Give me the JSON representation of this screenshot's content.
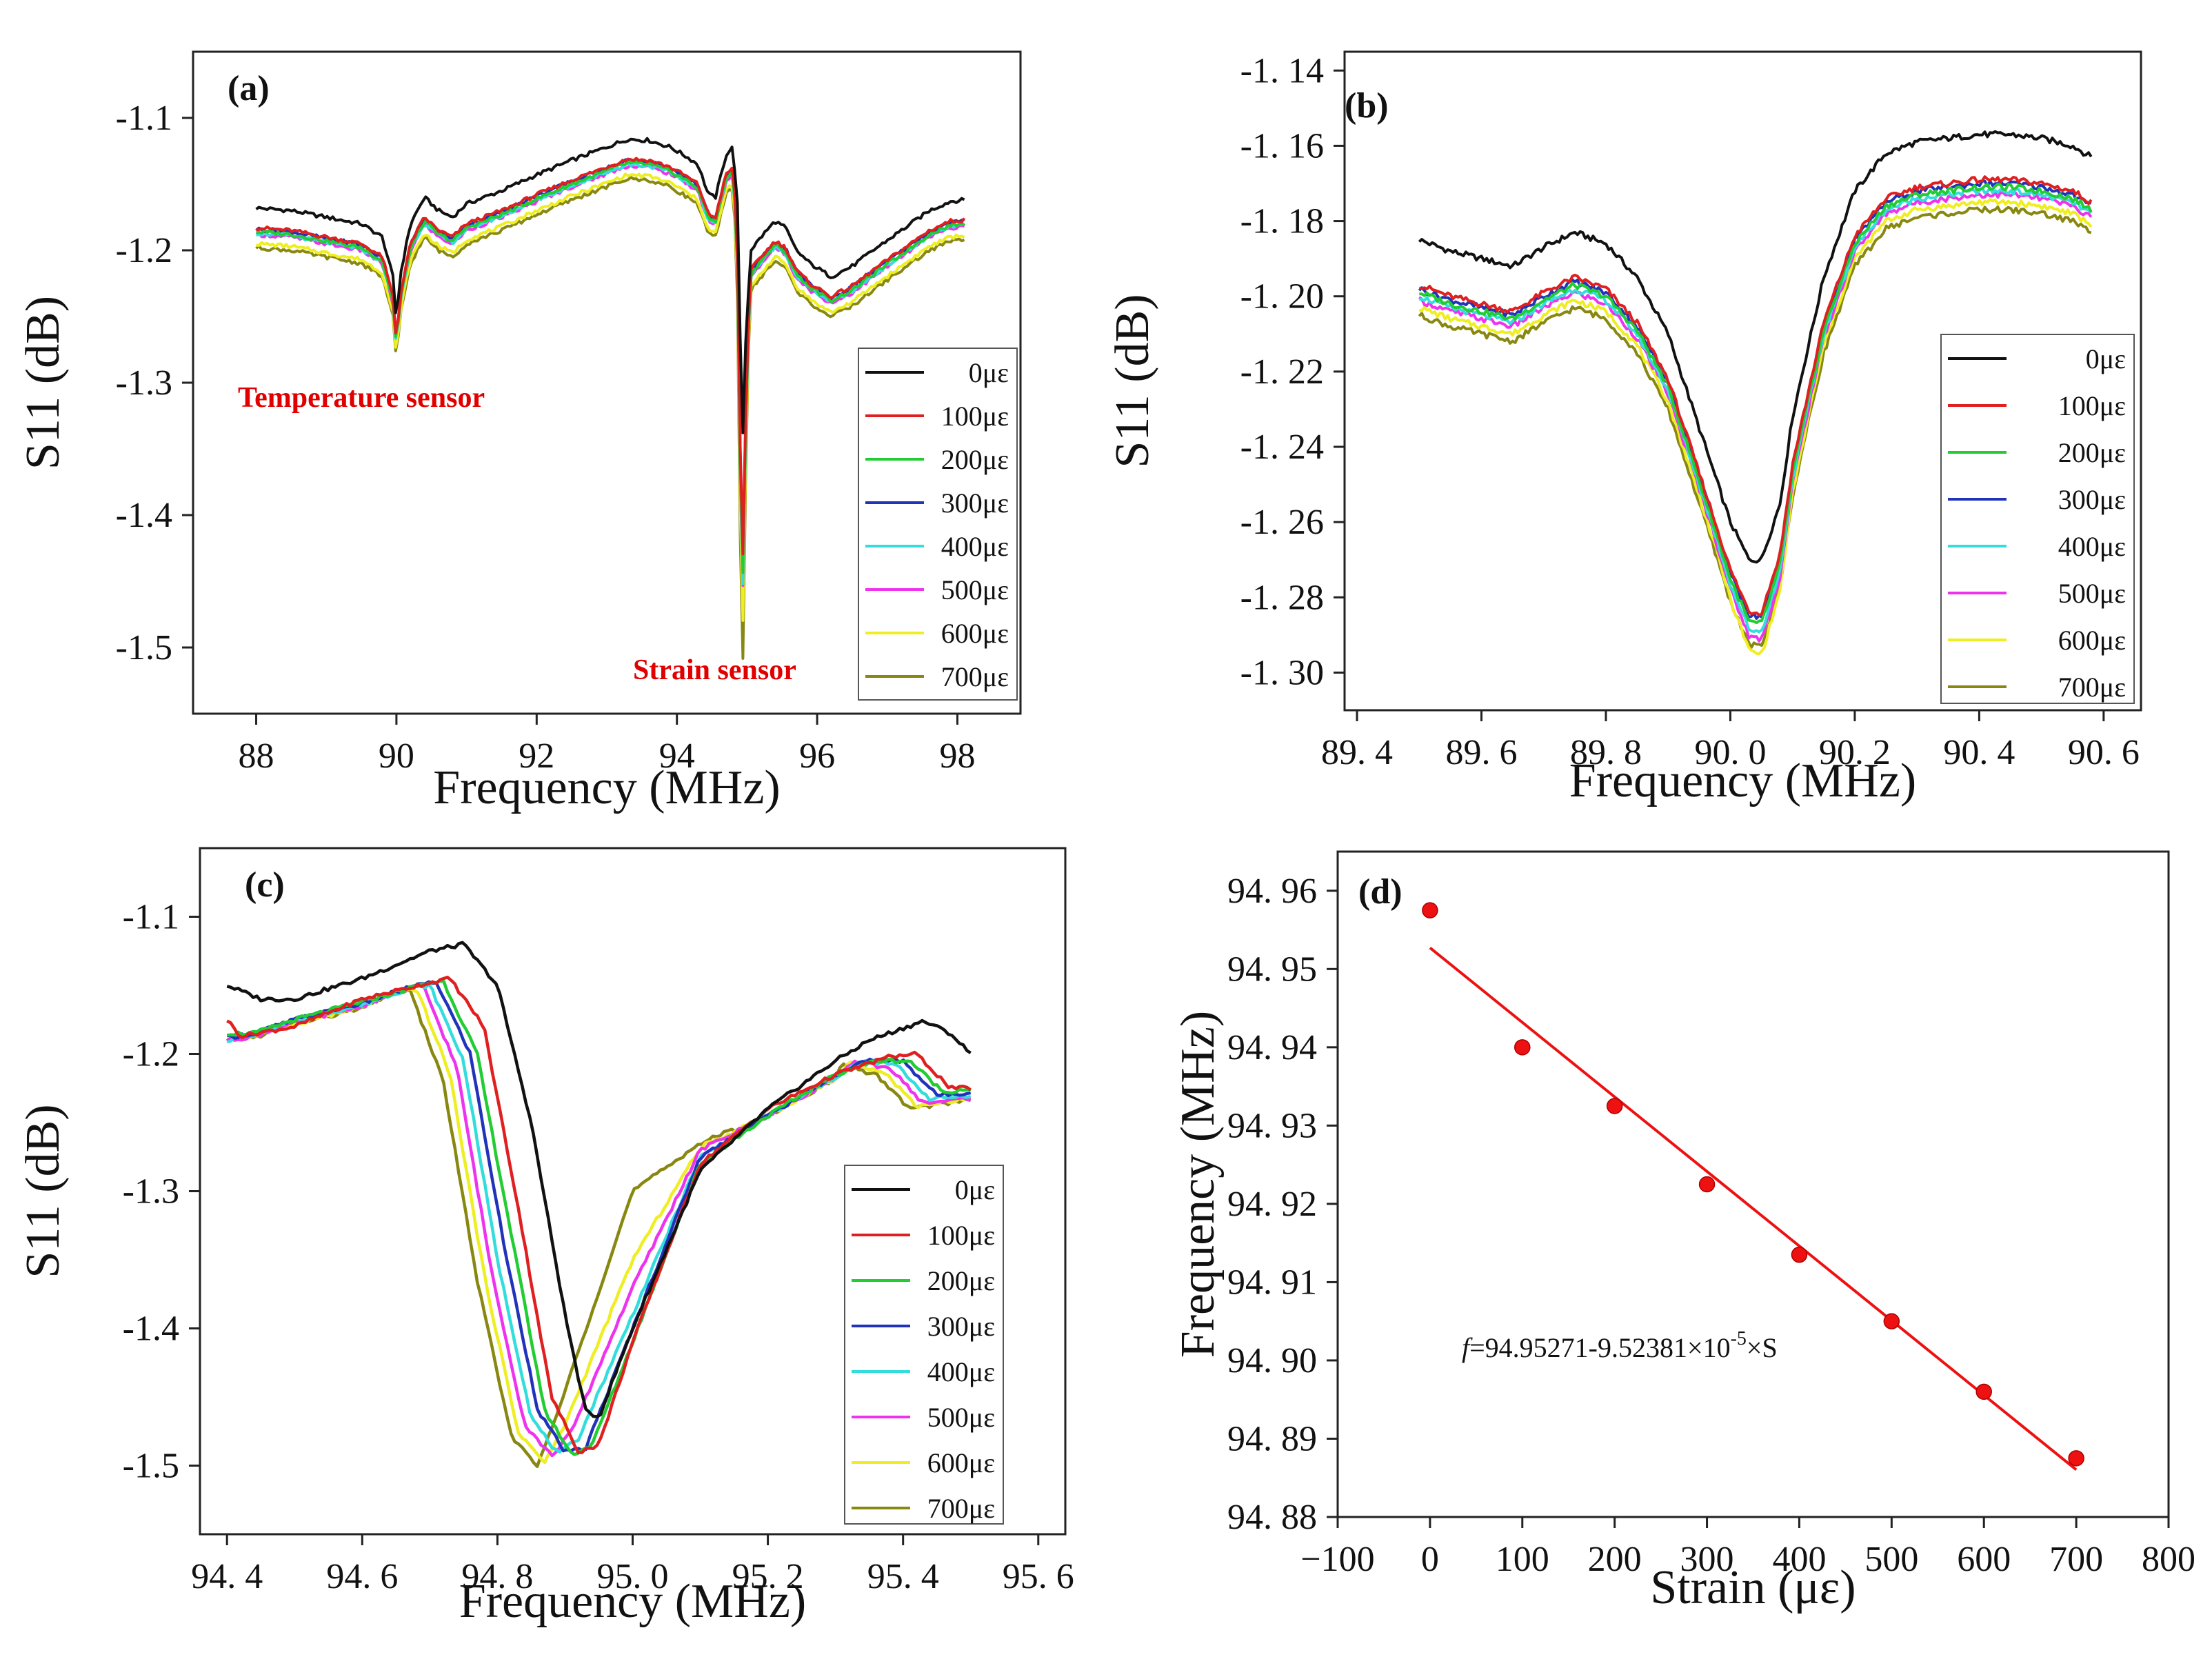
{
  "legend_strains": [
    "0με",
    "100με",
    "200με",
    "300με",
    "400με",
    "500με",
    "600με",
    "700με"
  ],
  "series_colors": [
    "#111111",
    "#e02020",
    "#22cc33",
    "#2233bb",
    "#33dddd",
    "#ee33ee",
    "#eeee22",
    "#888811"
  ],
  "fit_color": "#ee1111",
  "chart_data": [
    {
      "id": "a",
      "type": "line",
      "panel_label": "(a)",
      "xlabel": "Frequency (MHz)",
      "ylabel": "S11 (dB)",
      "xlim": [
        87.1,
        98.9
      ],
      "ylim": [
        -1.55,
        -1.05
      ],
      "xticks": [
        88,
        90,
        92,
        94,
        96,
        98
      ],
      "xtick_labels": [
        "88",
        "90",
        "92",
        "94",
        "96",
        "98"
      ],
      "yticks": [
        -1.5,
        -1.4,
        -1.3,
        -1.2,
        -1.1
      ],
      "ytick_labels": [
        "-1.5",
        "-1.4",
        "-1.3",
        "-1.2",
        "-1.1"
      ],
      "annotations": [
        "Temperature sensor",
        "Strain sensor"
      ],
      "base_curve": {
        "x": [
          88.0,
          88.5,
          89.0,
          89.5,
          89.8,
          89.95,
          90.0,
          90.05,
          90.2,
          90.4,
          90.6,
          90.8,
          91.0,
          91.5,
          92.0,
          92.5,
          93.0,
          93.3,
          93.6,
          93.9,
          94.1,
          94.3,
          94.45,
          94.55,
          94.7,
          94.8,
          94.87,
          94.9,
          94.93,
          94.97,
          95.05,
          95.2,
          95.4,
          95.55,
          95.7,
          95.9,
          96.2,
          96.5,
          96.8,
          97.2,
          97.6,
          97.9,
          98.1
        ],
        "y": [
          -1.168,
          -1.17,
          -1.175,
          -1.18,
          -1.19,
          -1.22,
          -1.255,
          -1.22,
          -1.18,
          -1.16,
          -1.17,
          -1.175,
          -1.165,
          -1.155,
          -1.143,
          -1.132,
          -1.122,
          -1.116,
          -1.117,
          -1.122,
          -1.128,
          -1.135,
          -1.158,
          -1.16,
          -1.128,
          -1.122,
          -1.17,
          -1.26,
          -1.36,
          -1.28,
          -1.2,
          -1.19,
          -1.178,
          -1.183,
          -1.2,
          -1.21,
          -1.22,
          -1.212,
          -1.2,
          -1.185,
          -1.17,
          -1.163,
          -1.162
        ]
      },
      "offsets": [
        0,
        -0.015,
        -0.018,
        -0.016,
        -0.019,
        -0.02,
        -0.027,
        -0.03
      ],
      "dip_delta": [
        0,
        -0.08,
        -0.09,
        -0.085,
        -0.1,
        -0.1,
        -0.12,
        -0.145
      ]
    },
    {
      "id": "b",
      "type": "line",
      "panel_label": "(b)",
      "xlabel": "Frequency (MHz)",
      "ylabel": "S11 (dB)",
      "xlim": [
        89.38,
        90.66
      ],
      "ylim": [
        -1.31,
        -1.135
      ],
      "xticks": [
        89.4,
        89.6,
        89.8,
        90.0,
        90.2,
        90.4,
        90.6
      ],
      "xtick_labels": [
        "89. 4",
        "89. 6",
        "89. 8",
        "90. 0",
        "90. 2",
        "90. 4",
        "90. 6"
      ],
      "yticks": [
        -1.3,
        -1.28,
        -1.26,
        -1.24,
        -1.22,
        -1.2,
        -1.18,
        -1.16,
        -1.14
      ],
      "ytick_labels": [
        "-1. 30",
        "-1. 28",
        "-1. 26",
        "-1. 24",
        "-1. 22",
        "-1. 20",
        "-1. 18",
        "-1. 16",
        "-1. 14"
      ],
      "base_curve": {
        "x": [
          89.5,
          89.55,
          89.6,
          89.65,
          89.7,
          89.75,
          89.8,
          89.85,
          89.9,
          89.95,
          90.0,
          90.03,
          90.05,
          90.08,
          90.1,
          90.15,
          90.2,
          90.25,
          90.3,
          90.35,
          90.4,
          90.45,
          90.5,
          90.55,
          90.58
        ],
        "y": [
          -1.185,
          -1.188,
          -1.19,
          -1.192,
          -1.187,
          -1.183,
          -1.186,
          -1.195,
          -1.21,
          -1.235,
          -1.26,
          -1.27,
          -1.27,
          -1.255,
          -1.232,
          -1.195,
          -1.172,
          -1.162,
          -1.159,
          -1.158,
          -1.157,
          -1.157,
          -1.158,
          -1.16,
          -1.163
        ]
      },
      "offsets": [
        0,
        -0.012,
        -0.014,
        -0.013,
        -0.015,
        -0.016,
        -0.018,
        -0.02
      ],
      "dip_delta": [
        0,
        -0.002,
        -0.003,
        -0.002,
        -0.004,
        -0.005,
        -0.007,
        -0.003
      ]
    },
    {
      "id": "c",
      "type": "line",
      "panel_label": "(c)",
      "xlabel": "Frequency (MHz)",
      "ylabel": "S11 (dB)",
      "xlim": [
        94.36,
        95.64
      ],
      "ylim": [
        -1.55,
        -1.05
      ],
      "xticks": [
        94.4,
        94.6,
        94.8,
        95.0,
        95.2,
        95.4,
        95.6
      ],
      "xtick_labels": [
        "94. 4",
        "94. 6",
        "94. 8",
        "95. 0",
        "95. 2",
        "95. 4",
        "95. 6"
      ],
      "yticks": [
        -1.5,
        -1.4,
        -1.3,
        -1.2,
        -1.1
      ],
      "ytick_labels": [
        "-1.5",
        "-1.4",
        "-1.3",
        "-1.2",
        "-1.1"
      ],
      "series": [
        {
          "name": "0με",
          "x": [
            94.4,
            94.45,
            94.5,
            94.6,
            94.7,
            94.75,
            94.8,
            94.85,
            94.9,
            94.93,
            94.95,
            95.0,
            95.1,
            95.2,
            95.3,
            95.35,
            95.43,
            95.47,
            95.5
          ],
          "y": [
            -1.15,
            -1.16,
            -1.16,
            -1.145,
            -1.125,
            -1.12,
            -1.15,
            -1.25,
            -1.39,
            -1.46,
            -1.465,
            -1.4,
            -1.285,
            -1.24,
            -1.205,
            -1.19,
            -1.176,
            -1.185,
            -1.2
          ]
        },
        {
          "name": "100με",
          "x": [
            94.4,
            94.42,
            94.5,
            94.6,
            94.7,
            94.73,
            94.78,
            94.83,
            94.88,
            94.92,
            94.95,
            95.0,
            95.1,
            95.2,
            95.3,
            95.38,
            95.42,
            95.47,
            95.5
          ],
          "y": [
            -1.175,
            -1.187,
            -1.18,
            -1.16,
            -1.148,
            -1.145,
            -1.18,
            -1.31,
            -1.45,
            -1.49,
            -1.485,
            -1.41,
            -1.28,
            -1.24,
            -1.215,
            -1.202,
            -1.2,
            -1.225,
            -1.225
          ]
        },
        {
          "name": "200με",
          "x": [
            94.4,
            94.44,
            94.5,
            94.6,
            94.7,
            94.72,
            94.77,
            94.82,
            94.87,
            94.91,
            94.94,
            95.0,
            95.1,
            95.2,
            95.3,
            95.36,
            95.41,
            95.46,
            95.5
          ],
          "y": [
            -1.185,
            -1.185,
            -1.175,
            -1.162,
            -1.148,
            -1.147,
            -1.2,
            -1.33,
            -1.46,
            -1.492,
            -1.485,
            -1.41,
            -1.28,
            -1.245,
            -1.215,
            -1.205,
            -1.205,
            -1.228,
            -1.225
          ]
        },
        {
          "name": "300με",
          "x": [
            94.4,
            94.44,
            94.5,
            94.6,
            94.68,
            94.71,
            94.76,
            94.81,
            94.86,
            94.9,
            94.93,
            95.0,
            95.1,
            95.2,
            95.3,
            95.35,
            95.4,
            95.45,
            95.5
          ],
          "y": [
            -1.188,
            -1.185,
            -1.175,
            -1.163,
            -1.15,
            -1.148,
            -1.2,
            -1.34,
            -1.46,
            -1.49,
            -1.488,
            -1.4,
            -1.275,
            -1.245,
            -1.215,
            -1.204,
            -1.205,
            -1.23,
            -1.228
          ]
        },
        {
          "name": "400με",
          "x": [
            94.4,
            94.44,
            94.5,
            94.6,
            94.67,
            94.7,
            94.75,
            94.8,
            94.85,
            94.89,
            94.92,
            95.0,
            95.1,
            95.2,
            95.3,
            95.34,
            95.39,
            95.44,
            95.5
          ],
          "y": [
            -1.19,
            -1.186,
            -1.176,
            -1.164,
            -1.152,
            -1.15,
            -1.205,
            -1.35,
            -1.465,
            -1.492,
            -1.48,
            -1.39,
            -1.275,
            -1.245,
            -1.217,
            -1.205,
            -1.208,
            -1.233,
            -1.23
          ]
        },
        {
          "name": "500με",
          "x": [
            94.4,
            94.44,
            94.5,
            94.6,
            94.66,
            94.69,
            94.74,
            94.79,
            94.84,
            94.88,
            94.91,
            95.0,
            95.1,
            95.2,
            95.3,
            95.33,
            95.38,
            95.43,
            95.5
          ],
          "y": [
            -1.19,
            -1.187,
            -1.177,
            -1.165,
            -1.153,
            -1.15,
            -1.21,
            -1.355,
            -1.47,
            -1.493,
            -1.475,
            -1.37,
            -1.27,
            -1.245,
            -1.217,
            -1.206,
            -1.21,
            -1.236,
            -1.232
          ]
        },
        {
          "name": "600με",
          "x": [
            94.4,
            94.44,
            94.5,
            94.6,
            94.65,
            94.68,
            94.73,
            94.78,
            94.83,
            94.87,
            94.9,
            95.0,
            95.1,
            95.2,
            95.3,
            95.32,
            95.37,
            95.42,
            95.5
          ],
          "y": [
            -1.19,
            -1.187,
            -1.178,
            -1.166,
            -1.155,
            -1.152,
            -1.215,
            -1.36,
            -1.475,
            -1.498,
            -1.47,
            -1.35,
            -1.268,
            -1.245,
            -1.218,
            -1.207,
            -1.212,
            -1.238,
            -1.232
          ]
        },
        {
          "name": "700με",
          "x": [
            94.4,
            94.44,
            94.5,
            94.6,
            94.64,
            94.67,
            94.72,
            94.77,
            94.82,
            94.86,
            94.89,
            95.0,
            95.1,
            95.2,
            95.3,
            95.31,
            95.36,
            95.41,
            95.5
          ],
          "y": [
            -1.19,
            -1.188,
            -1.178,
            -1.167,
            -1.156,
            -1.153,
            -1.22,
            -1.365,
            -1.478,
            -1.5,
            -1.46,
            -1.3,
            -1.265,
            -1.245,
            -1.218,
            -1.208,
            -1.215,
            -1.24,
            -1.233
          ]
        }
      ]
    },
    {
      "id": "d",
      "type": "scatter",
      "panel_label": "(d)",
      "xlabel": "Strain (με)",
      "ylabel": "Frequency (MHz)",
      "xlim": [
        -100,
        800
      ],
      "ylim": [
        94.88,
        94.965
      ],
      "xticks": [
        -100,
        0,
        100,
        200,
        300,
        400,
        500,
        600,
        700,
        800
      ],
      "xtick_labels": [
        "−100",
        "0",
        "100",
        "200",
        "300",
        "400",
        "500",
        "600",
        "700",
        "800"
      ],
      "yticks": [
        94.88,
        94.89,
        94.9,
        94.91,
        94.92,
        94.93,
        94.94,
        94.95,
        94.96
      ],
      "ytick_labels": [
        "94. 88",
        "94. 89",
        "94. 90",
        "94. 91",
        "94. 92",
        "94. 93",
        "94. 94",
        "94. 95",
        "94. 96"
      ],
      "x": [
        0,
        100,
        200,
        300,
        400,
        500,
        600,
        700
      ],
      "y": [
        94.9575,
        94.94,
        94.9325,
        94.9225,
        94.9135,
        94.905,
        94.896,
        94.8875
      ],
      "fit": {
        "intercept": 94.95271,
        "slope": -9.52381e-05,
        "x_range": [
          0,
          700
        ]
      },
      "equation": {
        "prefix": "f",
        "text": "=94.95271-9.52381×10",
        "sup": "-5",
        "suffix": "×S"
      }
    }
  ]
}
